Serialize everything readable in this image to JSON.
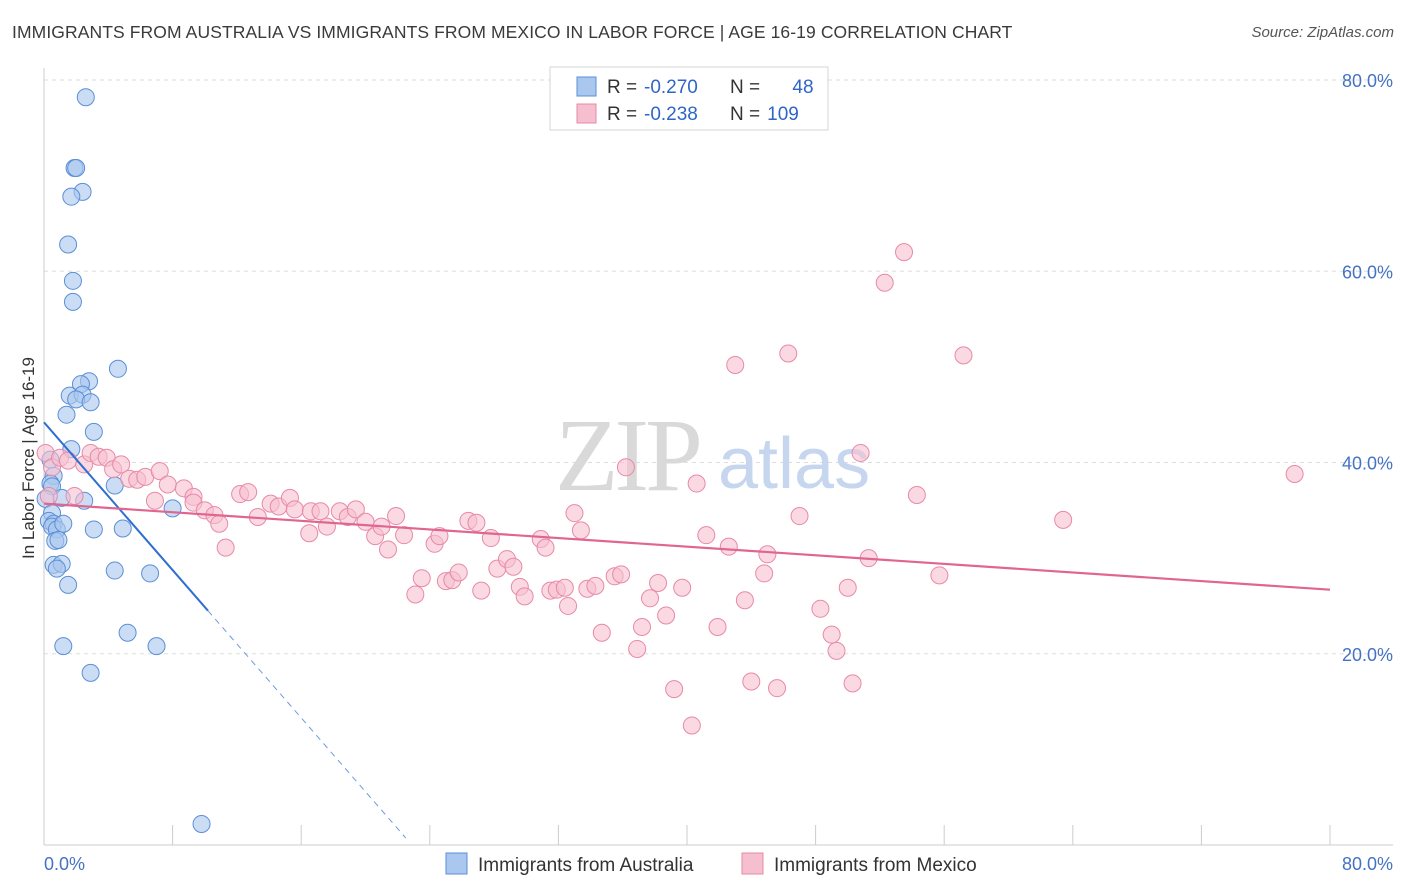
{
  "title": "IMMIGRANTS FROM AUSTRALIA VS IMMIGRANTS FROM MEXICO IN LABOR FORCE | AGE 16-19 CORRELATION CHART",
  "source": "Source: ZipAtlas.com",
  "watermark": {
    "zip": "ZIP",
    "atlas": "atlas"
  },
  "colors": {
    "blue_fill": "#a9c7ef",
    "blue_stroke": "#5b8fd6",
    "blue_line": "#2f6fd1",
    "pink_fill": "#f6bfd0",
    "pink_stroke": "#e889a8",
    "pink_line": "#e06590",
    "grid": "#dddddd",
    "tick_label": "#4472c4"
  },
  "legend": {
    "rows": [
      {
        "r_label": "R = ",
        "r_value": "-0.270",
        "n_label": "N = ",
        "n_value": "48"
      },
      {
        "r_label": "R = ",
        "r_value": "-0.238",
        "n_label": "N = ",
        "n_value": "109"
      }
    ]
  },
  "chart_data": {
    "type": "scatter",
    "title": "IMMIGRANTS FROM AUSTRALIA VS IMMIGRANTS FROM MEXICO IN LABOR FORCE | AGE 16-19 CORRELATION CHART",
    "xlabel": "",
    "ylabel": "In Labor Force | Age 16-19",
    "xlim": [
      0,
      80
    ],
    "ylim": [
      0,
      80
    ],
    "x_tick_labels": [
      "0.0%",
      "80.0%"
    ],
    "y_ticks": [
      20,
      40,
      60,
      80
    ],
    "y_tick_labels": [
      "20.0%",
      "40.0%",
      "60.0%",
      "80.0%"
    ],
    "grid": true,
    "legend_position": "top-center",
    "series": [
      {
        "name": "Immigrants from Australia",
        "color": "blue",
        "r": -0.27,
        "n": 48,
        "trend": {
          "x_start": 0,
          "y_start": 44.2,
          "x_end": 10.2,
          "y_end": 24.5,
          "dashed_to_x": 22.5
        },
        "points": [
          [
            2.6,
            78.2
          ],
          [
            1.9,
            70.8
          ],
          [
            2.0,
            70.8
          ],
          [
            2.4,
            68.3
          ],
          [
            1.7,
            67.8
          ],
          [
            1.5,
            62.8
          ],
          [
            1.8,
            59.0
          ],
          [
            1.8,
            56.8
          ],
          [
            4.6,
            49.8
          ],
          [
            2.8,
            48.5
          ],
          [
            2.3,
            48.2
          ],
          [
            1.6,
            47.0
          ],
          [
            2.4,
            47.1
          ],
          [
            2.0,
            46.6
          ],
          [
            2.9,
            46.3
          ],
          [
            1.4,
            45.0
          ],
          [
            3.1,
            43.2
          ],
          [
            1.7,
            41.4
          ],
          [
            0.4,
            40.3
          ],
          [
            0.6,
            38.6
          ],
          [
            0.4,
            37.8
          ],
          [
            0.5,
            37.5
          ],
          [
            4.4,
            37.6
          ],
          [
            0.1,
            36.2
          ],
          [
            1.1,
            36.3
          ],
          [
            2.5,
            36.0
          ],
          [
            8.0,
            35.2
          ],
          [
            0.5,
            34.7
          ],
          [
            0.3,
            33.9
          ],
          [
            0.6,
            33.6
          ],
          [
            0.5,
            33.3
          ],
          [
            0.8,
            33.0
          ],
          [
            1.2,
            33.6
          ],
          [
            3.1,
            33.0
          ],
          [
            4.9,
            33.1
          ],
          [
            0.7,
            31.8
          ],
          [
            0.9,
            31.9
          ],
          [
            0.6,
            29.3
          ],
          [
            1.1,
            29.4
          ],
          [
            0.8,
            28.9
          ],
          [
            4.4,
            28.7
          ],
          [
            6.6,
            28.4
          ],
          [
            1.5,
            27.2
          ],
          [
            5.2,
            22.2
          ],
          [
            1.2,
            20.8
          ],
          [
            7.0,
            20.8
          ],
          [
            2.9,
            18.0
          ],
          [
            9.8,
            2.2
          ]
        ]
      },
      {
        "name": "Immigrants from Mexico",
        "color": "pink",
        "r": -0.238,
        "n": 109,
        "trend": {
          "x_start": 0,
          "y_start": 35.7,
          "x_end": 80,
          "y_end": 26.7
        },
        "points": [
          [
            0.1,
            41.0
          ],
          [
            0.5,
            39.5
          ],
          [
            1.0,
            40.5
          ],
          [
            1.5,
            40.2
          ],
          [
            2.5,
            39.8
          ],
          [
            2.9,
            41.0
          ],
          [
            3.4,
            40.6
          ],
          [
            3.9,
            40.5
          ],
          [
            4.3,
            39.3
          ],
          [
            4.8,
            39.8
          ],
          [
            5.3,
            38.3
          ],
          [
            5.8,
            38.2
          ],
          [
            6.3,
            38.5
          ],
          [
            7.2,
            39.1
          ],
          [
            7.7,
            37.7
          ],
          [
            8.7,
            37.3
          ],
          [
            9.3,
            36.4
          ],
          [
            6.9,
            36.0
          ],
          [
            9.3,
            35.8
          ],
          [
            10.0,
            35.0
          ],
          [
            10.6,
            34.5
          ],
          [
            12.2,
            36.7
          ],
          [
            12.7,
            36.9
          ],
          [
            13.3,
            34.3
          ],
          [
            14.1,
            35.7
          ],
          [
            14.6,
            35.4
          ],
          [
            15.3,
            36.3
          ],
          [
            15.6,
            35.1
          ],
          [
            16.6,
            34.9
          ],
          [
            17.2,
            34.9
          ],
          [
            17.6,
            33.3
          ],
          [
            18.4,
            34.9
          ],
          [
            18.9,
            34.3
          ],
          [
            19.4,
            35.1
          ],
          [
            20.0,
            33.8
          ],
          [
            20.6,
            32.3
          ],
          [
            21.0,
            33.3
          ],
          [
            21.4,
            30.9
          ],
          [
            21.9,
            34.4
          ],
          [
            22.4,
            32.4
          ],
          [
            23.1,
            26.2
          ],
          [
            23.5,
            27.9
          ],
          [
            24.3,
            31.5
          ],
          [
            24.6,
            32.3
          ],
          [
            25.0,
            27.6
          ],
          [
            25.4,
            27.7
          ],
          [
            25.8,
            28.5
          ],
          [
            26.4,
            33.9
          ],
          [
            26.9,
            33.7
          ],
          [
            27.2,
            26.6
          ],
          [
            27.8,
            32.1
          ],
          [
            28.2,
            28.9
          ],
          [
            28.8,
            29.9
          ],
          [
            29.2,
            29.1
          ],
          [
            29.6,
            27.0
          ],
          [
            29.9,
            26.0
          ],
          [
            30.9,
            32.0
          ],
          [
            31.2,
            31.1
          ],
          [
            31.5,
            26.6
          ],
          [
            31.9,
            26.7
          ],
          [
            32.4,
            26.9
          ],
          [
            32.6,
            25.0
          ],
          [
            33.0,
            34.7
          ],
          [
            33.4,
            32.9
          ],
          [
            33.8,
            26.8
          ],
          [
            34.3,
            27.1
          ],
          [
            34.7,
            22.2
          ],
          [
            35.5,
            28.1
          ],
          [
            35.9,
            28.3
          ],
          [
            36.2,
            39.5
          ],
          [
            36.9,
            20.5
          ],
          [
            37.2,
            22.8
          ],
          [
            37.7,
            25.8
          ],
          [
            38.2,
            27.4
          ],
          [
            38.7,
            24.0
          ],
          [
            39.2,
            16.3
          ],
          [
            39.7,
            26.9
          ],
          [
            40.3,
            12.5
          ],
          [
            40.6,
            37.8
          ],
          [
            41.2,
            32.4
          ],
          [
            41.9,
            22.8
          ],
          [
            42.6,
            31.2
          ],
          [
            43.0,
            50.2
          ],
          [
            43.6,
            25.6
          ],
          [
            44.0,
            17.1
          ],
          [
            44.8,
            28.4
          ],
          [
            45.0,
            30.4
          ],
          [
            45.6,
            16.4
          ],
          [
            46.3,
            51.4
          ],
          [
            47.0,
            34.4
          ],
          [
            48.3,
            24.7
          ],
          [
            49.0,
            22.0
          ],
          [
            49.3,
            20.3
          ],
          [
            50.0,
            26.9
          ],
          [
            50.3,
            16.9
          ],
          [
            50.8,
            41.0
          ],
          [
            51.3,
            30.0
          ],
          [
            52.3,
            58.8
          ],
          [
            53.5,
            62.0
          ],
          [
            54.3,
            36.6
          ],
          [
            55.7,
            28.2
          ],
          [
            57.2,
            51.2
          ],
          [
            63.4,
            34.0
          ],
          [
            77.8,
            38.8
          ],
          [
            0.3,
            36.5
          ],
          [
            1.9,
            36.5
          ],
          [
            11.3,
            31.1
          ],
          [
            10.9,
            33.6
          ],
          [
            16.5,
            32.6
          ]
        ]
      }
    ]
  },
  "bottom_legend": {
    "items": [
      "Immigrants from Australia",
      "Immigrants from Mexico"
    ]
  }
}
